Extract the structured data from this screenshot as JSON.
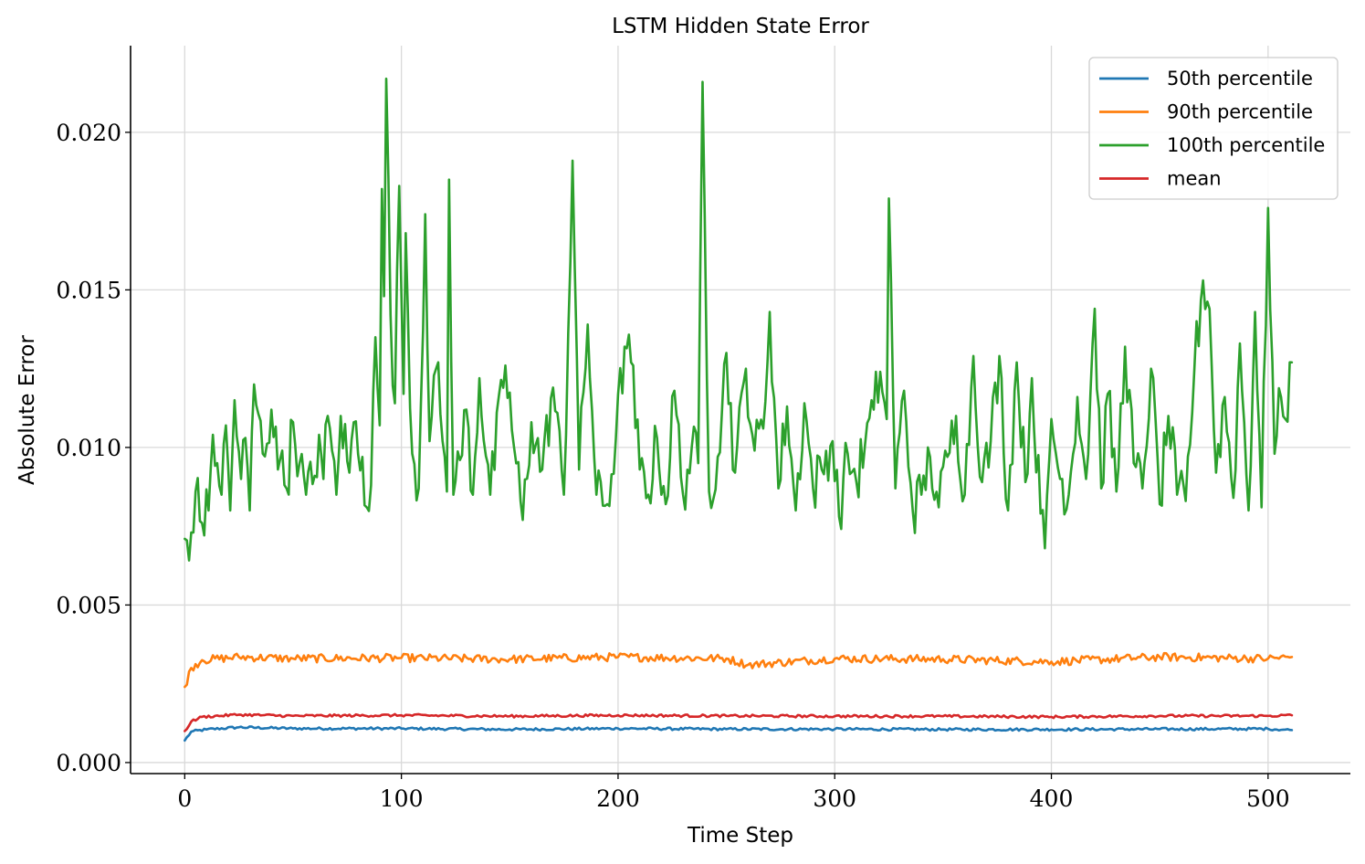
{
  "chart_data": {
    "type": "line",
    "title": "LSTM Hidden State Error",
    "xlabel": "Time Step",
    "ylabel": "Absolute Error",
    "xlim": [
      -25,
      538
    ],
    "ylim": [
      -0.00035,
      0.02275
    ],
    "xticks": [
      0,
      100,
      200,
      300,
      400,
      500
    ],
    "xtick_labels": [
      "0",
      "100",
      "200",
      "300",
      "400",
      "500"
    ],
    "yticks": [
      0,
      0.005,
      0.01,
      0.015,
      0.02
    ],
    "ytick_labels": [
      "0.000",
      "0.005",
      "0.010",
      "0.015",
      "0.020"
    ],
    "grid": true,
    "legend_position": "top-right",
    "num_points": 512,
    "series": [
      {
        "name": "50th percentile",
        "color": "#1f77b4",
        "key_points": [
          [
            0,
            0.0007
          ],
          [
            3,
            0.00098
          ],
          [
            10,
            0.00105
          ],
          [
            25,
            0.00112
          ],
          [
            50,
            0.00108
          ],
          [
            100,
            0.00108
          ],
          [
            150,
            0.00105
          ],
          [
            200,
            0.00108
          ],
          [
            250,
            0.00106
          ],
          [
            300,
            0.00106
          ],
          [
            350,
            0.00105
          ],
          [
            400,
            0.00105
          ],
          [
            450,
            0.00106
          ],
          [
            500,
            0.00107
          ],
          [
            511,
            0.00103
          ]
        ],
        "noise": 4e-05
      },
      {
        "name": "90th percentile",
        "color": "#ff7f0e",
        "key_points": [
          [
            0,
            0.0024
          ],
          [
            3,
            0.003
          ],
          [
            8,
            0.00325
          ],
          [
            25,
            0.00335
          ],
          [
            50,
            0.0033
          ],
          [
            100,
            0.00332
          ],
          [
            150,
            0.00328
          ],
          [
            200,
            0.00335
          ],
          [
            250,
            0.0033
          ],
          [
            260,
            0.0031
          ],
          [
            300,
            0.0033
          ],
          [
            350,
            0.00328
          ],
          [
            400,
            0.0032
          ],
          [
            450,
            0.00335
          ],
          [
            500,
            0.0033
          ],
          [
            511,
            0.00335
          ]
        ],
        "noise": 0.00013
      },
      {
        "name": "100th percentile",
        "color": "#2ca02c",
        "key_points": [
          [
            0,
            0.0071
          ],
          [
            1,
            0.00705
          ],
          [
            3,
            0.0073
          ],
          [
            4,
            0.0073
          ],
          [
            5,
            0.0086
          ],
          [
            8,
            0.0076
          ],
          [
            11,
            0.008
          ],
          [
            13,
            0.0104
          ],
          [
            15,
            0.0095
          ],
          [
            17,
            0.0085
          ],
          [
            19,
            0.0107
          ],
          [
            21,
            0.008
          ],
          [
            23,
            0.0115
          ],
          [
            26,
            0.009
          ],
          [
            28,
            0.0103
          ],
          [
            30,
            0.008
          ],
          [
            32,
            0.012
          ],
          [
            36,
            0.0098
          ],
          [
            40,
            0.0112
          ],
          [
            43,
            0.0093
          ],
          [
            45,
            0.0099
          ],
          [
            47,
            0.0087
          ],
          [
            50,
            0.0108
          ],
          [
            53,
            0.0095
          ],
          [
            56,
            0.0085
          ],
          [
            60,
            0.0091
          ],
          [
            62,
            0.0104
          ],
          [
            64,
            0.009
          ],
          [
            66,
            0.011
          ],
          [
            68,
            0.0099
          ],
          [
            70,
            0.0085
          ],
          [
            72,
            0.011
          ],
          [
            76,
            0.0092
          ],
          [
            78,
            0.0108
          ],
          [
            82,
            0.0097
          ],
          [
            84,
            0.0081
          ],
          [
            86,
            0.0088
          ],
          [
            88,
            0.0135
          ],
          [
            90,
            0.0107
          ],
          [
            91,
            0.0182
          ],
          [
            92,
            0.0148
          ],
          [
            93,
            0.0217
          ],
          [
            95,
            0.0142
          ],
          [
            97,
            0.0114
          ],
          [
            99,
            0.0183
          ],
          [
            101,
            0.0117
          ],
          [
            102,
            0.0168
          ],
          [
            105,
            0.0098
          ],
          [
            108,
            0.0087
          ],
          [
            111,
            0.0174
          ],
          [
            113,
            0.0102
          ],
          [
            117,
            0.0127
          ],
          [
            119,
            0.0102
          ],
          [
            121,
            0.0086
          ],
          [
            122,
            0.0185
          ],
          [
            124,
            0.0085
          ],
          [
            127,
            0.0096
          ],
          [
            130,
            0.0112
          ],
          [
            133,
            0.0085
          ],
          [
            136,
            0.0122
          ],
          [
            141,
            0.0085
          ],
          [
            148,
            0.0126
          ],
          [
            152,
            0.01
          ],
          [
            156,
            0.0077
          ],
          [
            160,
            0.0108
          ],
          [
            165,
            0.0093
          ],
          [
            170,
            0.0119
          ],
          [
            175,
            0.0085
          ],
          [
            179,
            0.0191
          ],
          [
            182,
            0.0093
          ],
          [
            186,
            0.0139
          ],
          [
            190,
            0.0085
          ],
          [
            195,
            0.0082
          ],
          [
            199,
            0.0103
          ],
          [
            203,
            0.0132
          ],
          [
            206,
            0.0127
          ],
          [
            210,
            0.0093
          ],
          [
            214,
            0.0085
          ],
          [
            218,
            0.0103
          ],
          [
            222,
            0.0082
          ],
          [
            226,
            0.0118
          ],
          [
            230,
            0.0085
          ],
          [
            234,
            0.01
          ],
          [
            237,
            0.0095
          ],
          [
            239,
            0.0216
          ],
          [
            242,
            0.0086
          ],
          [
            246,
            0.0097
          ],
          [
            250,
            0.013
          ],
          [
            254,
            0.0092
          ],
          [
            259,
            0.0125
          ],
          [
            263,
            0.0099
          ],
          [
            267,
            0.0106
          ],
          [
            270,
            0.0143
          ],
          [
            274,
            0.0087
          ],
          [
            278,
            0.0113
          ],
          [
            282,
            0.008
          ],
          [
            286,
            0.0114
          ],
          [
            290,
            0.0087
          ],
          [
            294,
            0.0093
          ],
          [
            299,
            0.0102
          ],
          [
            302,
            0.0078
          ],
          [
            306,
            0.0098
          ],
          [
            310,
            0.0089
          ],
          [
            314,
            0.0101
          ],
          [
            318,
            0.0112
          ],
          [
            321,
            0.0124
          ],
          [
            324,
            0.0109
          ],
          [
            325,
            0.0179
          ],
          [
            328,
            0.0087
          ],
          [
            332,
            0.0118
          ],
          [
            336,
            0.008
          ],
          [
            340,
            0.0085
          ],
          [
            344,
            0.0097
          ],
          [
            348,
            0.0081
          ],
          [
            352,
            0.0097
          ],
          [
            356,
            0.011
          ],
          [
            360,
            0.0085
          ],
          [
            364,
            0.0129
          ],
          [
            368,
            0.0089
          ],
          [
            372,
            0.0102
          ],
          [
            376,
            0.0129
          ],
          [
            380,
            0.008
          ],
          [
            384,
            0.0127
          ],
          [
            388,
            0.0089
          ],
          [
            391,
            0.0122
          ],
          [
            395,
            0.0079
          ],
          [
            397,
            0.0068
          ],
          [
            400,
            0.0109
          ],
          [
            404,
            0.009
          ],
          [
            408,
            0.0085
          ],
          [
            412,
            0.0116
          ],
          [
            416,
            0.009
          ],
          [
            420,
            0.0144
          ],
          [
            423,
            0.0087
          ],
          [
            426,
            0.0117
          ],
          [
            430,
            0.0086
          ],
          [
            434,
            0.0132
          ],
          [
            438,
            0.0095
          ],
          [
            442,
            0.0087
          ],
          [
            446,
            0.0125
          ],
          [
            450,
            0.0082
          ],
          [
            454,
            0.011
          ],
          [
            458,
            0.0085
          ],
          [
            462,
            0.0083
          ],
          [
            466,
            0.0125
          ],
          [
            470,
            0.0153
          ],
          [
            473,
            0.0144
          ],
          [
            476,
            0.0092
          ],
          [
            480,
            0.0116
          ],
          [
            484,
            0.0084
          ],
          [
            487,
            0.0133
          ],
          [
            491,
            0.008
          ],
          [
            494,
            0.0143
          ],
          [
            497,
            0.0081
          ],
          [
            500,
            0.0176
          ],
          [
            503,
            0.0098
          ],
          [
            506,
            0.0116
          ],
          [
            508,
            0.0109
          ],
          [
            511,
            0.0127
          ]
        ],
        "noise": 0.0009
      },
      {
        "name": "mean",
        "color": "#d62728",
        "key_points": [
          [
            0,
            0.001
          ],
          [
            3,
            0.0013
          ],
          [
            8,
            0.00145
          ],
          [
            25,
            0.00152
          ],
          [
            50,
            0.00148
          ],
          [
            100,
            0.0015
          ],
          [
            150,
            0.00147
          ],
          [
            200,
            0.0015
          ],
          [
            250,
            0.00148
          ],
          [
            300,
            0.00147
          ],
          [
            350,
            0.00147
          ],
          [
            400,
            0.00145
          ],
          [
            450,
            0.00148
          ],
          [
            500,
            0.00148
          ],
          [
            511,
            0.0015
          ]
        ],
        "noise": 4e-05
      }
    ]
  }
}
